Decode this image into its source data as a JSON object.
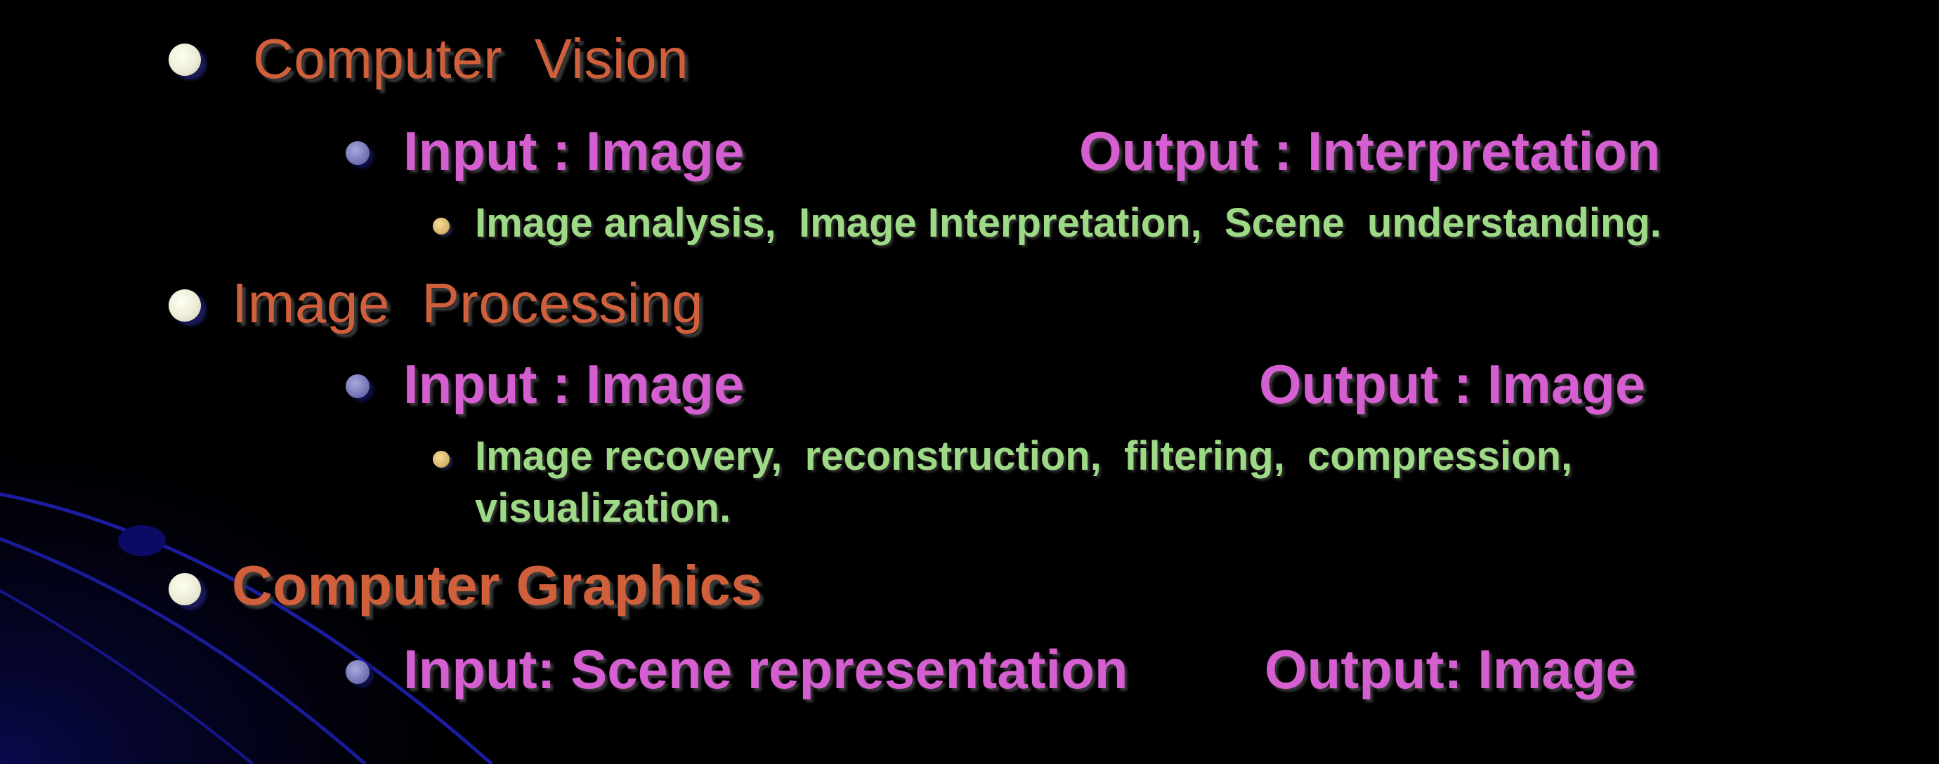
{
  "slide": {
    "sections": [
      {
        "title": "Computer  Vision",
        "io": {
          "input": "Input : Image",
          "output": "Output : Interpretation"
        },
        "details": [
          "Image analysis,  Image Interpretation,  Scene  understanding."
        ]
      },
      {
        "title": "Image  Processing",
        "io": {
          "input": "Input : Image",
          "output": "Output : Image"
        },
        "details": [
          "Image recovery,  reconstruction,  filtering,  compression,",
          "visualization."
        ]
      },
      {
        "title": "Computer Graphics",
        "io": {
          "input": "Input: Scene representation",
          "output": "Output: Image"
        },
        "details": []
      }
    ]
  },
  "colors": {
    "background": "#000000",
    "heading": "#d0603c",
    "io_text": "#d55fd0",
    "detail_text": "#9ed986",
    "decor_arcs": "#1a1aa8"
  }
}
